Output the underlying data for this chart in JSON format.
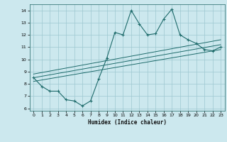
{
  "xlabel": "Humidex (Indice chaleur)",
  "xlim": [
    -0.5,
    23.5
  ],
  "ylim": [
    5.8,
    14.5
  ],
  "xticks": [
    0,
    1,
    2,
    3,
    4,
    5,
    6,
    7,
    8,
    9,
    10,
    11,
    12,
    13,
    14,
    15,
    16,
    17,
    18,
    19,
    20,
    21,
    22,
    23
  ],
  "yticks": [
    6,
    7,
    8,
    9,
    10,
    11,
    12,
    13,
    14
  ],
  "bg_color": "#cce8ee",
  "grid_color": "#9dc8d0",
  "line_color": "#1e6b6b",
  "line1_x": [
    0,
    1,
    2,
    3,
    4,
    5,
    6,
    7,
    8,
    9,
    10,
    11,
    12,
    13,
    14,
    15,
    16,
    17,
    18,
    19,
    20,
    21,
    22,
    23
  ],
  "line1_y": [
    8.5,
    7.8,
    7.4,
    7.4,
    6.7,
    6.6,
    6.2,
    6.6,
    8.4,
    10.1,
    12.2,
    12.0,
    14.0,
    12.9,
    12.0,
    12.1,
    13.3,
    14.1,
    12.0,
    11.6,
    11.3,
    10.8,
    10.7,
    11.0
  ],
  "line2_x": [
    0,
    23
  ],
  "line2_y": [
    8.2,
    10.8
  ],
  "line3_x": [
    0,
    23
  ],
  "line3_y": [
    8.5,
    11.2
  ],
  "line4_x": [
    0,
    23
  ],
  "line4_y": [
    8.8,
    11.6
  ]
}
